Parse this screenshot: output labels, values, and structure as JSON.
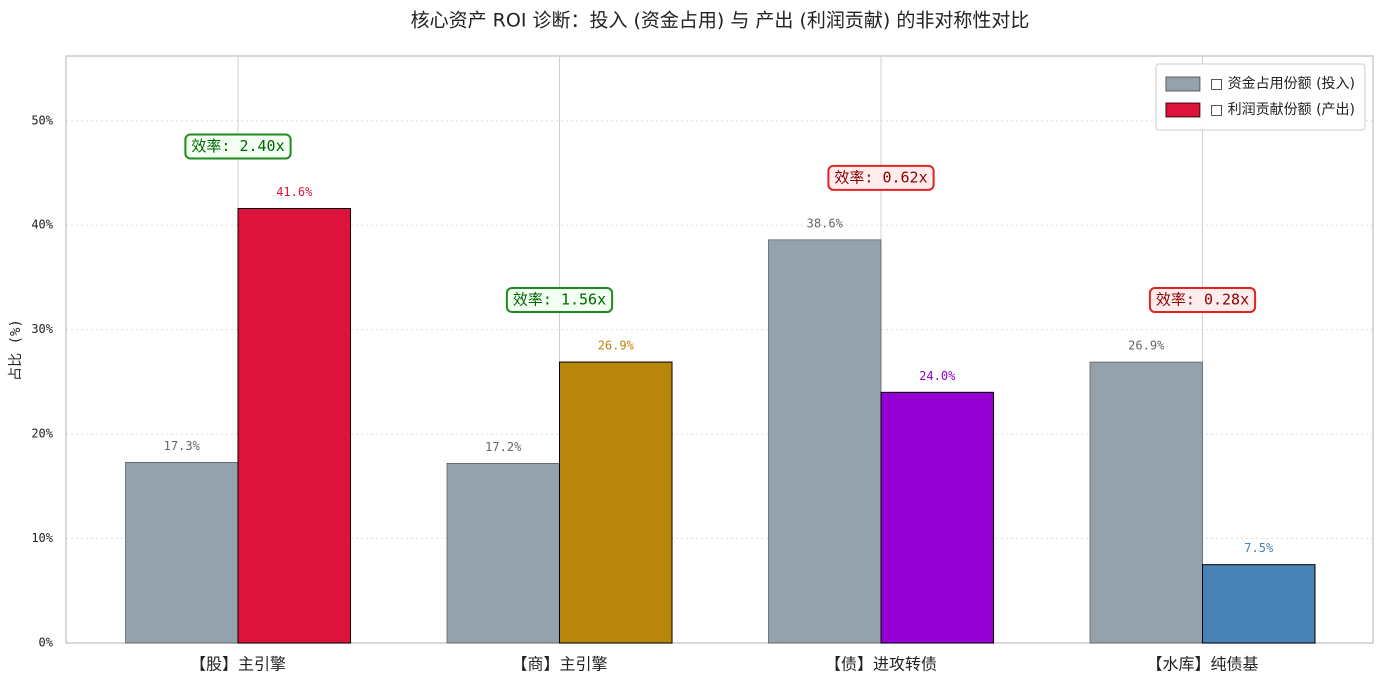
{
  "chart_data": {
    "type": "bar",
    "title": "核心资产 ROI 诊断：投入 (资金占用) 与 产出 (利润贡献) 的非对称性对比",
    "y_label": "占比 (%)",
    "categories": [
      "【股】主引擎",
      "【商】主引擎",
      "【债】进攻转债",
      "【水库】纯债基"
    ],
    "series": [
      {
        "name": "□ 资金占用份额 (投入)",
        "color": "#94a2ae",
        "label_color": "#666666",
        "values": [
          17.3,
          17.2,
          38.6,
          26.9
        ],
        "value_labels": [
          "17.3%",
          "17.2%",
          "38.6%",
          "26.9%"
        ]
      },
      {
        "name": "□ 利润贡献份额 (产出)",
        "color": "#dc143c",
        "colors": [
          "#dc143c",
          "#b8860b",
          "#9400d3",
          "#4682b4"
        ],
        "values": [
          41.6,
          26.9,
          24.0,
          7.5
        ],
        "value_labels": [
          "41.6%",
          "26.9%",
          "24.0%",
          "7.5%"
        ]
      }
    ],
    "annotations": [
      {
        "text": "效率: 2.40x",
        "color": "green"
      },
      {
        "text": "效率: 1.56x",
        "color": "green"
      },
      {
        "text": "效率: 0.62x",
        "color": "red"
      },
      {
        "text": "效率: 0.28x",
        "color": "red"
      }
    ],
    "ylim": [
      0,
      56.2
    ],
    "yticks": [
      {
        "value": 0,
        "label": "0%"
      },
      {
        "value": 10,
        "label": "10%"
      },
      {
        "value": 20,
        "label": "20%"
      },
      {
        "value": 30,
        "label": "30%"
      },
      {
        "value": 40,
        "label": "40%"
      },
      {
        "value": 50,
        "label": "50%"
      }
    ],
    "grid": true,
    "legend": "upper right"
  }
}
